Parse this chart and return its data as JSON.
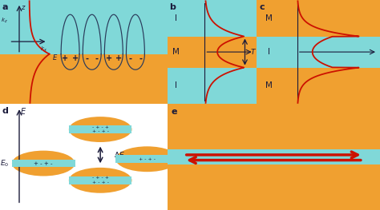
{
  "bg_color": "#ffffff",
  "cyan_color": "#80d8d8",
  "orange_color": "#f0a030",
  "red_color": "#cc1100",
  "dark_color": "#1a1a3a",
  "panel_labels": [
    "a",
    "b",
    "c",
    "d",
    "e"
  ]
}
